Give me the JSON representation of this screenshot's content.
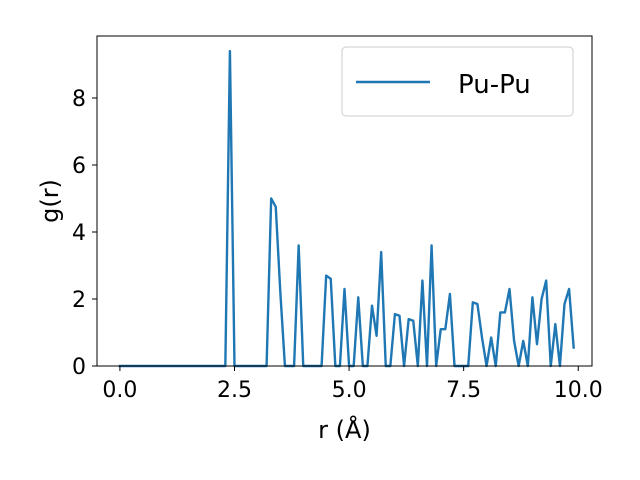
{
  "chart_data": {
    "type": "line",
    "title": "",
    "xlabel": "r (Å)",
    "ylabel": "g(r)",
    "xlim": [
      -0.5,
      10.3
    ],
    "ylim": [
      0,
      9.85
    ],
    "x_ticks": [
      "0.0",
      "2.5",
      "5.0",
      "7.5",
      "10.0"
    ],
    "x_tick_values": [
      0,
      2.5,
      5,
      7.5,
      10
    ],
    "y_ticks": [
      "0",
      "2",
      "4",
      "6",
      "8"
    ],
    "y_tick_values": [
      0,
      2,
      4,
      6,
      8
    ],
    "grid": false,
    "legend_position": "top-right",
    "color": "#1f77b4",
    "series": [
      {
        "name": "Pu-Pu",
        "color": "#1f77b4",
        "x": [
          0.0,
          0.1,
          0.2,
          0.3,
          0.4,
          0.5,
          0.6,
          0.7,
          0.8,
          0.9,
          1.0,
          1.1,
          1.2,
          1.3,
          1.4,
          1.5,
          1.6,
          1.7,
          1.8,
          1.9,
          2.0,
          2.1,
          2.2,
          2.3,
          2.4,
          2.5,
          2.6,
          2.7,
          2.8,
          2.9,
          3.0,
          3.1,
          3.2,
          3.3,
          3.4,
          3.5,
          3.6,
          3.7,
          3.8,
          3.9,
          4.0,
          4.1,
          4.2,
          4.3,
          4.4,
          4.5,
          4.6,
          4.7,
          4.8,
          4.9,
          5.0,
          5.1,
          5.2,
          5.3,
          5.4,
          5.5,
          5.6,
          5.7,
          5.8,
          5.9,
          6.0,
          6.1,
          6.2,
          6.3,
          6.4,
          6.5,
          6.6,
          6.7,
          6.8,
          6.9,
          7.0,
          7.1,
          7.2,
          7.3,
          7.4,
          7.5,
          7.6,
          7.7,
          7.8,
          7.9,
          8.0,
          8.1,
          8.2,
          8.3,
          8.4,
          8.5,
          8.6,
          8.7,
          8.8,
          8.9,
          9.0,
          9.1,
          9.2,
          9.3,
          9.4,
          9.5,
          9.6,
          9.7,
          9.8,
          9.9
        ],
        "y": [
          0,
          0,
          0,
          0,
          0,
          0,
          0,
          0,
          0,
          0,
          0,
          0,
          0,
          0,
          0,
          0,
          0,
          0,
          0,
          0,
          0,
          0,
          0,
          0,
          9.4,
          0,
          0,
          0,
          0,
          0,
          0,
          0,
          0,
          5.0,
          4.75,
          2.2,
          0,
          0,
          0,
          3.6,
          0,
          0,
          0,
          0,
          0,
          2.7,
          2.6,
          0,
          0,
          2.3,
          0,
          0,
          2.05,
          0,
          0,
          1.8,
          0.9,
          3.4,
          0,
          0,
          1.55,
          1.5,
          0,
          1.4,
          1.35,
          0,
          2.55,
          0,
          3.6,
          0,
          1.1,
          1.1,
          2.15,
          0,
          0,
          0,
          0,
          1.9,
          1.85,
          0.85,
          0,
          0.85,
          0,
          1.6,
          1.6,
          2.3,
          0.75,
          0,
          0.75,
          0,
          2.05,
          0.65,
          2.0,
          2.55,
          0,
          1.25,
          0,
          1.85,
          2.3,
          0.55
        ]
      }
    ]
  }
}
